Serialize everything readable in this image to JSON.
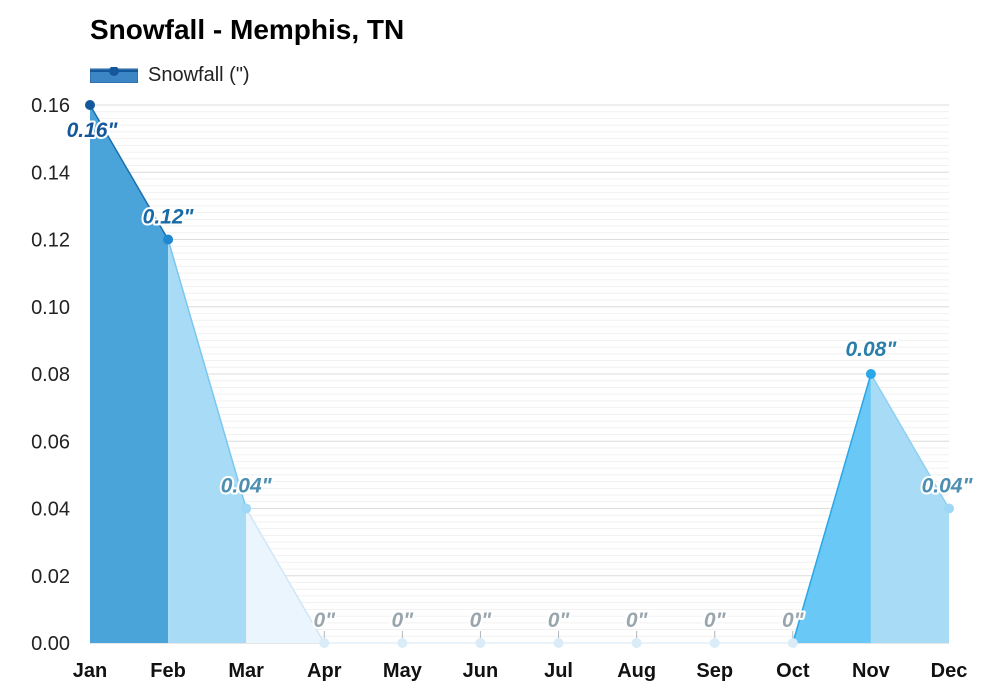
{
  "chart_data": {
    "type": "area",
    "title": "Snowfall - Memphis, TN",
    "xlabel": "",
    "ylabel": "",
    "categories": [
      "Jan",
      "Feb",
      "Mar",
      "Apr",
      "May",
      "Jun",
      "Jul",
      "Aug",
      "Sep",
      "Oct",
      "Nov",
      "Dec"
    ],
    "series": [
      {
        "name": "Snowfall (\")",
        "values": [
          0.16,
          0.12,
          0.04,
          0,
          0,
          0,
          0,
          0,
          0,
          0,
          0.08,
          0.04
        ],
        "value_labels": [
          "0.16\"",
          "0.12\"",
          "0.04\"",
          "0\"",
          "0\"",
          "0\"",
          "0\"",
          "0\"",
          "0\"",
          "0\"",
          "0.08\"",
          "0.04\""
        ]
      }
    ],
    "ylim": [
      0,
      0.16
    ],
    "yticks": [
      "0.00",
      "0.02",
      "0.04",
      "0.06",
      "0.08",
      "0.10",
      "0.12",
      "0.14",
      "0.16"
    ],
    "grid": true,
    "legend_position": "top-left",
    "colors": {
      "legend_swatch": "#3d86c6",
      "grid": "#e4e4e4"
    }
  }
}
